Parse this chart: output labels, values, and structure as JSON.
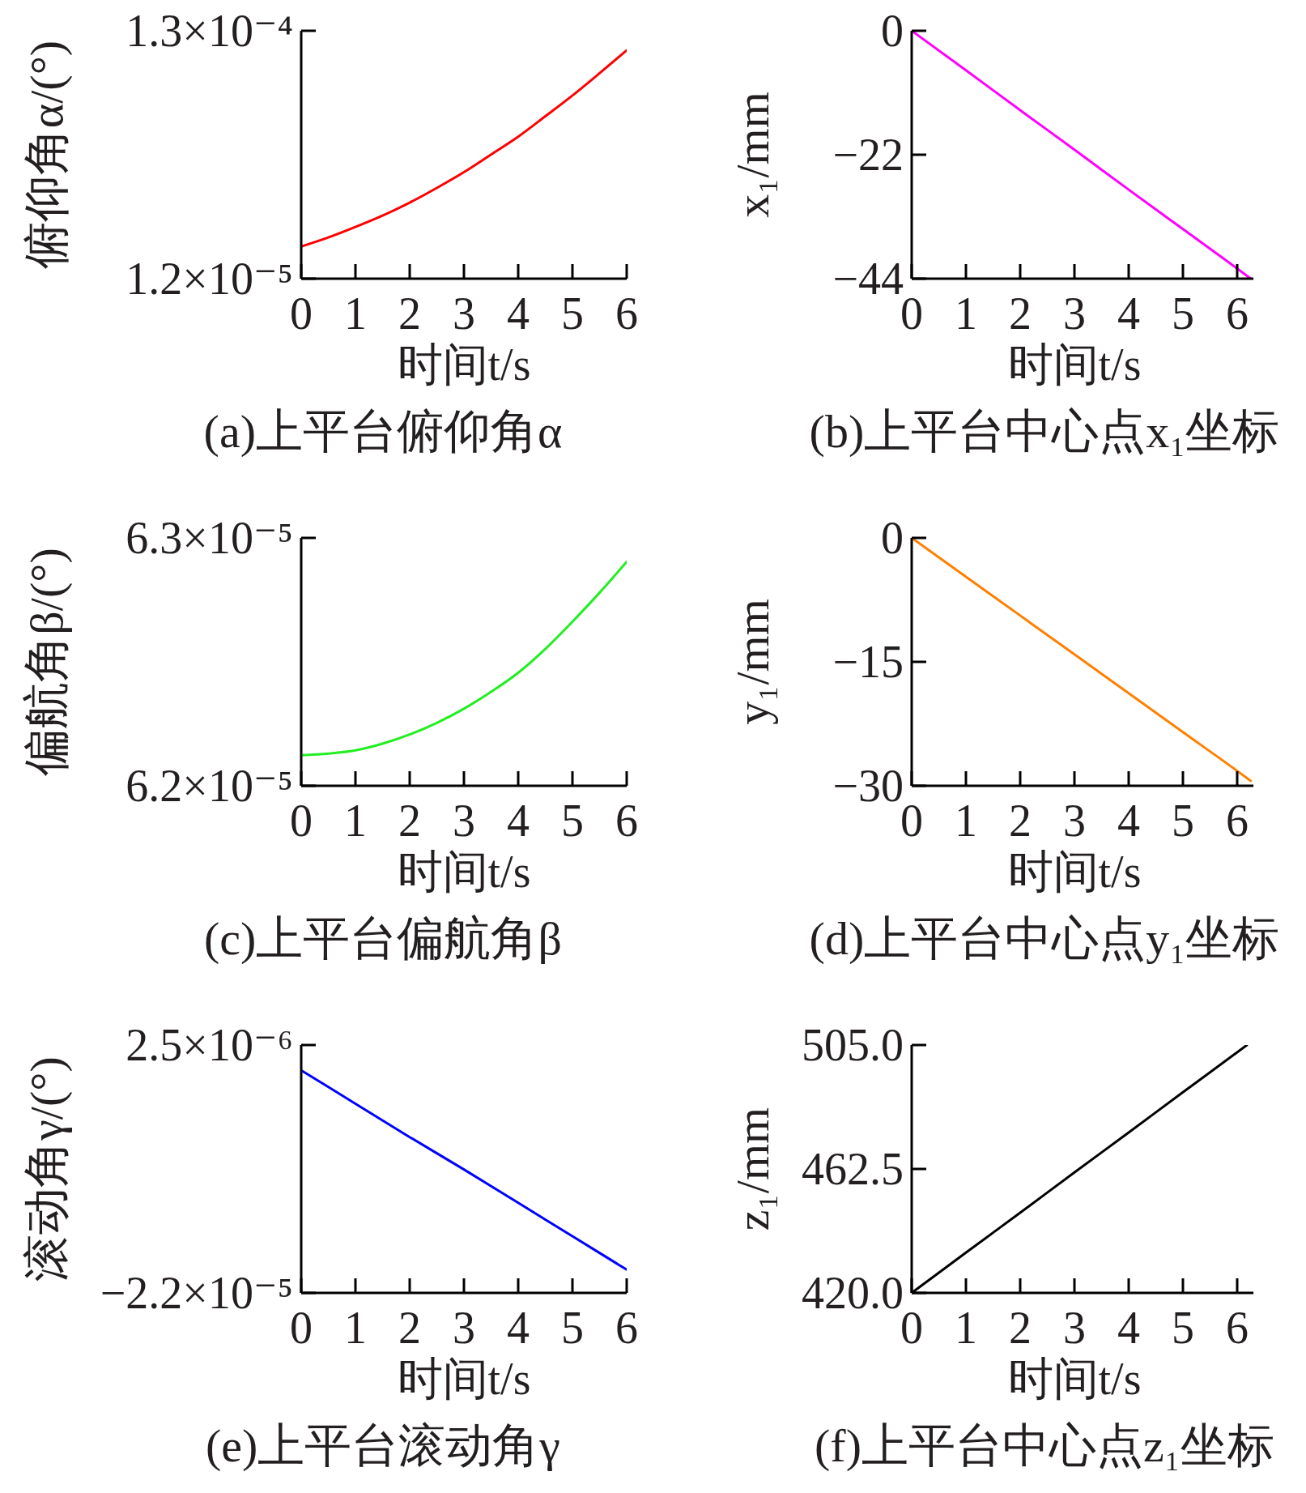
{
  "chart_data": [
    {
      "type": "line",
      "title": "(a)上平台俯仰角α",
      "xlabel": "时间t/s",
      "ylabel": "俯仰角α/(°)",
      "x": [
        0,
        0.5,
        1,
        1.5,
        2,
        2.5,
        3,
        3.5,
        4,
        4.5,
        5,
        5.5,
        6
      ],
      "values": [
        2.73e-05,
        3.16e-05,
        3.66e-05,
        4.2e-05,
        4.82e-05,
        5.52e-05,
        6.27e-05,
        7.11e-05,
        7.96e-05,
        8.93e-05,
        9.92e-05,
        0.0001098,
        0.0001207
      ],
      "color": "#ff0000",
      "xlim": [
        0,
        6
      ],
      "xticks": [
        0,
        1,
        2,
        3,
        4,
        5,
        6
      ],
      "ylim": [
        1.2e-05,
        0.00013
      ],
      "yticks": [
        {
          "value": 1.2e-05,
          "label": "1.2×10⁻⁵"
        },
        {
          "value": 0.00013,
          "label": "1.3×10⁻⁴"
        }
      ]
    },
    {
      "type": "line",
      "title": "(b)上平台中心点x₁坐标",
      "xlabel": "时间t/s",
      "ylabel": "x₁/mm",
      "x": [
        0,
        1,
        2,
        3,
        4,
        5,
        6,
        6.25
      ],
      "values": [
        0,
        -7.0,
        -14.1,
        -21.1,
        -28.2,
        -35.2,
        -42.2,
        -44.0
      ],
      "color": "#ff00ff",
      "xlim": [
        0,
        6.3
      ],
      "xticks": [
        0,
        1,
        2,
        3,
        4,
        5,
        6
      ],
      "ylim": [
        -44,
        0
      ],
      "yticks": [
        {
          "value": -44,
          "label": "−44"
        },
        {
          "value": -22,
          "label": "−22"
        },
        {
          "value": 0,
          "label": "0"
        }
      ]
    },
    {
      "type": "line",
      "title": "(c)上平台偏航角β",
      "xlabel": "时间t/s",
      "ylabel": "偏航角β/(°)",
      "x": [
        0,
        0.5,
        1,
        1.5,
        2,
        2.5,
        3,
        3.5,
        4,
        4.5,
        5,
        5.5,
        6
      ],
      "values": [
        6.2123e-05,
        6.213e-05,
        6.2143e-05,
        6.217e-05,
        6.2207e-05,
        6.2254e-05,
        6.2311e-05,
        6.2379e-05,
        6.2456e-05,
        6.2552e-05,
        6.2662e-05,
        6.2779e-05,
        6.2904e-05
      ],
      "color": "#22ee22",
      "xlim": [
        0,
        6
      ],
      "xticks": [
        0,
        1,
        2,
        3,
        4,
        5,
        6
      ],
      "ylim": [
        6.2e-05,
        6.3e-05
      ],
      "yticks": [
        {
          "value": 6.2e-05,
          "label": "6.2×10⁻⁵"
        },
        {
          "value": 6.3e-05,
          "label": "6.3×10⁻⁵"
        }
      ]
    },
    {
      "type": "line",
      "title": "(d)上平台中心点y₁坐标",
      "xlabel": "时间t/s",
      "ylabel": "y₁/mm",
      "x": [
        0,
        1,
        2,
        3,
        4,
        5,
        6,
        6.25
      ],
      "values": [
        0,
        -4.7,
        -9.4,
        -14.1,
        -18.8,
        -23.5,
        -28.2,
        -29.4
      ],
      "color": "#ff8000",
      "xlim": [
        0,
        6.3
      ],
      "xticks": [
        0,
        1,
        2,
        3,
        4,
        5,
        6
      ],
      "ylim": [
        -30,
        0
      ],
      "yticks": [
        {
          "value": -30,
          "label": "−30"
        },
        {
          "value": -15,
          "label": "−15"
        },
        {
          "value": 0,
          "label": "0"
        }
      ]
    },
    {
      "type": "line",
      "title": "(e)上平台滚动角γ",
      "xlabel": "时间t/s",
      "ylabel": "滚动角γ/(°)",
      "x": [
        0,
        1,
        2,
        3,
        4,
        5,
        6
      ],
      "values": [
        0,
        -3.3e-06,
        -6.6e-06,
        -9.8e-06,
        -1.31e-05,
        -1.64e-05,
        -1.97e-05
      ],
      "color": "#0000ff",
      "xlim": [
        0,
        6
      ],
      "xticks": [
        0,
        1,
        2,
        3,
        4,
        5,
        6
      ],
      "ylim": [
        -2.2e-05,
        2.5e-06
      ],
      "yticks": [
        {
          "value": -2.2e-05,
          "label": "−2.2×10⁻⁵"
        },
        {
          "value": 2.5e-06,
          "label": "2.5×10⁻⁶"
        }
      ]
    },
    {
      "type": "line",
      "title": "(f)上平台中心点z₁坐标",
      "xlabel": "时间t/s",
      "ylabel": "z₁/mm",
      "x": [
        0,
        1,
        2,
        3,
        4,
        5,
        6,
        6.18
      ],
      "values": [
        420,
        433.8,
        447.5,
        461.3,
        475.0,
        488.8,
        502.5,
        505
      ],
      "color": "#000000",
      "xlim": [
        0,
        6.3
      ],
      "xticks": [
        0,
        1,
        2,
        3,
        4,
        5,
        6
      ],
      "ylim": [
        420,
        505
      ],
      "yticks": [
        {
          "value": 420,
          "label": "420.0"
        },
        {
          "value": 462.5,
          "label": "462.5"
        },
        {
          "value": 505,
          "label": "505.0"
        }
      ]
    }
  ]
}
